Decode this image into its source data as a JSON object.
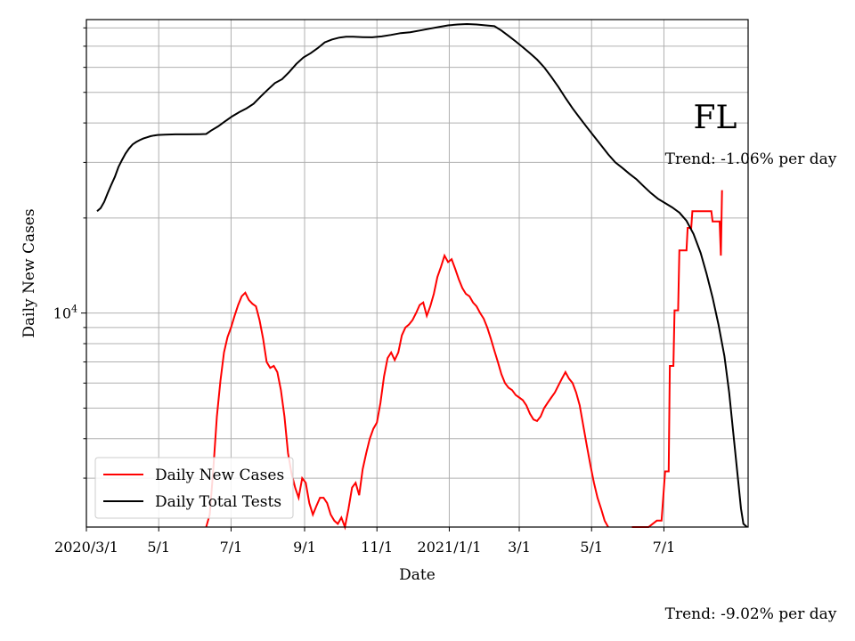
{
  "chart_data": {
    "type": "line",
    "state_label": "FL",
    "xlabel": "Date",
    "ylabel": "Daily New Cases",
    "y_scale": "log",
    "ylim": [
      2100,
      85000
    ],
    "grid": true,
    "legend_position": "lower-left",
    "x_ticks": [
      "2020/3/1",
      "5/1",
      "7/1",
      "9/1",
      "11/1",
      "2021/1/1",
      "3/1",
      "5/1",
      "7/1"
    ],
    "x_tick_dates": [
      "2020-03-01",
      "2020-05-01",
      "2020-07-01",
      "2020-09-01",
      "2020-11-01",
      "2021-01-01",
      "2021-03-01",
      "2021-05-01",
      "2021-07-01"
    ],
    "x_range": [
      "2020-03-01",
      "2021-09-10"
    ],
    "y_tick_label": "10^4",
    "trend_labels": {
      "tests": "Trend: -1.06% per day",
      "cases": "Trend: -9.02% per day"
    },
    "series": [
      {
        "name": "Daily New Cases",
        "color": "#ff0000",
        "points": [
          [
            "2020-06-10",
            1950
          ],
          [
            "2020-06-13",
            2300
          ],
          [
            "2020-06-16",
            3200
          ],
          [
            "2020-06-19",
            4700
          ],
          [
            "2020-06-22",
            6100
          ],
          [
            "2020-06-25",
            7500
          ],
          [
            "2020-06-28",
            8400
          ],
          [
            "2020-07-01",
            9000
          ],
          [
            "2020-07-04",
            9800
          ],
          [
            "2020-07-07",
            10600
          ],
          [
            "2020-07-10",
            11300
          ],
          [
            "2020-07-13",
            11600
          ],
          [
            "2020-07-16",
            11000
          ],
          [
            "2020-07-19",
            10700
          ],
          [
            "2020-07-22",
            10500
          ],
          [
            "2020-07-25",
            9500
          ],
          [
            "2020-07-28",
            8300
          ],
          [
            "2020-07-31",
            7000
          ],
          [
            "2020-08-03",
            6700
          ],
          [
            "2020-08-06",
            6800
          ],
          [
            "2020-08-09",
            6500
          ],
          [
            "2020-08-12",
            5700
          ],
          [
            "2020-08-15",
            4700
          ],
          [
            "2020-08-18",
            3600
          ],
          [
            "2020-08-21",
            3100
          ],
          [
            "2020-08-24",
            2800
          ],
          [
            "2020-08-27",
            2600
          ],
          [
            "2020-08-30",
            3000
          ],
          [
            "2020-09-02",
            2900
          ],
          [
            "2020-09-05",
            2500
          ],
          [
            "2020-09-08",
            2300
          ],
          [
            "2020-09-11",
            2450
          ],
          [
            "2020-09-14",
            2600
          ],
          [
            "2020-09-17",
            2600
          ],
          [
            "2020-09-20",
            2500
          ],
          [
            "2020-09-23",
            2300
          ],
          [
            "2020-09-26",
            2200
          ],
          [
            "2020-09-29",
            2150
          ],
          [
            "2020-10-02",
            2250
          ],
          [
            "2020-10-05",
            1900
          ],
          [
            "2020-10-08",
            2400
          ],
          [
            "2020-10-11",
            2800
          ],
          [
            "2020-10-14",
            2900
          ],
          [
            "2020-10-17",
            2650
          ],
          [
            "2020-10-20",
            3200
          ],
          [
            "2020-10-23",
            3600
          ],
          [
            "2020-10-26",
            4000
          ],
          [
            "2020-10-29",
            4300
          ],
          [
            "2020-11-01",
            4500
          ],
          [
            "2020-11-04",
            5200
          ],
          [
            "2020-11-07",
            6300
          ],
          [
            "2020-11-10",
            7200
          ],
          [
            "2020-11-13",
            7500
          ],
          [
            "2020-11-16",
            7100
          ],
          [
            "2020-11-19",
            7500
          ],
          [
            "2020-11-22",
            8500
          ],
          [
            "2020-11-25",
            9000
          ],
          [
            "2020-11-28",
            9200
          ],
          [
            "2020-12-01",
            9500
          ],
          [
            "2020-12-04",
            10000
          ],
          [
            "2020-12-07",
            10600
          ],
          [
            "2020-12-10",
            10800
          ],
          [
            "2020-12-13",
            9800
          ],
          [
            "2020-12-16",
            10500
          ],
          [
            "2020-12-19",
            11500
          ],
          [
            "2020-12-22",
            13000
          ],
          [
            "2020-12-25",
            14000
          ],
          [
            "2020-12-28",
            15200
          ],
          [
            "2020-12-31",
            14500
          ],
          [
            "2021-01-03",
            14800
          ],
          [
            "2021-01-06",
            13800
          ],
          [
            "2021-01-09",
            12800
          ],
          [
            "2021-01-12",
            12000
          ],
          [
            "2021-01-15",
            11500
          ],
          [
            "2021-01-18",
            11300
          ],
          [
            "2021-01-21",
            10800
          ],
          [
            "2021-01-24",
            10500
          ],
          [
            "2021-01-27",
            10000
          ],
          [
            "2021-01-30",
            9600
          ],
          [
            "2021-02-02",
            9000
          ],
          [
            "2021-02-05",
            8300
          ],
          [
            "2021-02-08",
            7600
          ],
          [
            "2021-02-11",
            7000
          ],
          [
            "2021-02-14",
            6400
          ],
          [
            "2021-02-17",
            6000
          ],
          [
            "2021-02-20",
            5800
          ],
          [
            "2021-02-23",
            5700
          ],
          [
            "2021-02-26",
            5500
          ],
          [
            "2021-03-01",
            5400
          ],
          [
            "2021-03-04",
            5300
          ],
          [
            "2021-03-07",
            5100
          ],
          [
            "2021-03-10",
            4800
          ],
          [
            "2021-03-13",
            4600
          ],
          [
            "2021-03-16",
            4550
          ],
          [
            "2021-03-19",
            4700
          ],
          [
            "2021-03-22",
            5000
          ],
          [
            "2021-03-25",
            5200
          ],
          [
            "2021-03-28",
            5400
          ],
          [
            "2021-03-31",
            5600
          ],
          [
            "2021-04-03",
            5900
          ],
          [
            "2021-04-06",
            6200
          ],
          [
            "2021-04-09",
            6500
          ],
          [
            "2021-04-12",
            6200
          ],
          [
            "2021-04-15",
            6000
          ],
          [
            "2021-04-18",
            5600
          ],
          [
            "2021-04-21",
            5100
          ],
          [
            "2021-04-24",
            4400
          ],
          [
            "2021-04-27",
            3800
          ],
          [
            "2021-04-30",
            3300
          ],
          [
            "2021-05-03",
            2900
          ],
          [
            "2021-05-06",
            2600
          ],
          [
            "2021-05-09",
            2400
          ],
          [
            "2021-05-12",
            2200
          ],
          [
            "2021-05-15",
            2000
          ]
        ],
        "steps": [
          [
            "2021-06-04",
            2000
          ],
          [
            "2021-06-18",
            2000
          ],
          [
            "2021-06-25",
            2200
          ],
          [
            "2021-06-29",
            2200
          ],
          [
            "2021-07-02",
            3150
          ],
          [
            "2021-07-05",
            3150
          ],
          [
            "2021-07-06",
            6800
          ],
          [
            "2021-07-09",
            6800
          ],
          [
            "2021-07-10",
            10200
          ],
          [
            "2021-07-13",
            10200
          ],
          [
            "2021-07-14",
            15800
          ],
          [
            "2021-07-20",
            15800
          ],
          [
            "2021-07-21",
            18600
          ],
          [
            "2021-07-24",
            18600
          ],
          [
            "2021-07-25",
            21000
          ],
          [
            "2021-08-10",
            21000
          ],
          [
            "2021-08-11",
            19500
          ],
          [
            "2021-08-17",
            19500
          ],
          [
            "2021-08-18",
            15200
          ],
          [
            "2021-08-19",
            24500
          ]
        ]
      },
      {
        "name": "Daily Total Tests",
        "color": "#000000",
        "points": [
          [
            "2020-03-10",
            21000
          ],
          [
            "2020-03-13",
            21500
          ],
          [
            "2020-03-16",
            22500
          ],
          [
            "2020-03-19",
            24000
          ],
          [
            "2020-03-22",
            25500
          ],
          [
            "2020-03-25",
            27000
          ],
          [
            "2020-03-28",
            29000
          ],
          [
            "2020-03-31",
            30500
          ],
          [
            "2020-04-03",
            32000
          ],
          [
            "2020-04-06",
            33200
          ],
          [
            "2020-04-09",
            34200
          ],
          [
            "2020-04-12",
            34800
          ],
          [
            "2020-04-15",
            35300
          ],
          [
            "2020-04-18",
            35700
          ],
          [
            "2020-04-21",
            36000
          ],
          [
            "2020-04-24",
            36300
          ],
          [
            "2020-04-27",
            36500
          ],
          [
            "2020-04-30",
            36650
          ],
          [
            "2020-05-06",
            36750
          ],
          [
            "2020-05-15",
            36800
          ],
          [
            "2020-05-25",
            36800
          ],
          [
            "2020-06-05",
            36850
          ],
          [
            "2020-06-10",
            36900
          ],
          [
            "2020-06-14",
            37800
          ],
          [
            "2020-06-20",
            39000
          ],
          [
            "2020-06-26",
            40500
          ],
          [
            "2020-07-02",
            42000
          ],
          [
            "2020-07-08",
            43300
          ],
          [
            "2020-07-14",
            44500
          ],
          [
            "2020-07-20",
            46000
          ],
          [
            "2020-07-26",
            48500
          ],
          [
            "2020-08-01",
            51000
          ],
          [
            "2020-08-07",
            53500
          ],
          [
            "2020-08-13",
            55000
          ],
          [
            "2020-08-19",
            58000
          ],
          [
            "2020-08-25",
            61500
          ],
          [
            "2020-08-31",
            64500
          ],
          [
            "2020-09-06",
            66500
          ],
          [
            "2020-09-12",
            69000
          ],
          [
            "2020-09-18",
            72000
          ],
          [
            "2020-09-24",
            73500
          ],
          [
            "2020-09-30",
            74500
          ],
          [
            "2020-10-06",
            75000
          ],
          [
            "2020-10-12",
            75000
          ],
          [
            "2020-10-20",
            74800
          ],
          [
            "2020-10-28",
            74700
          ],
          [
            "2020-11-05",
            75200
          ],
          [
            "2020-11-13",
            76000
          ],
          [
            "2020-11-21",
            77000
          ],
          [
            "2020-11-29",
            77500
          ],
          [
            "2020-12-07",
            78500
          ],
          [
            "2020-12-15",
            79500
          ],
          [
            "2020-12-23",
            80500
          ],
          [
            "2020-12-31",
            81500
          ],
          [
            "2021-01-08",
            82000
          ],
          [
            "2021-01-16",
            82300
          ],
          [
            "2021-01-24",
            82000
          ],
          [
            "2021-02-01",
            81500
          ],
          [
            "2021-02-08",
            81000
          ],
          [
            "2021-02-14",
            78500
          ],
          [
            "2021-02-20",
            75500
          ],
          [
            "2021-02-26",
            72500
          ],
          [
            "2021-03-04",
            69500
          ],
          [
            "2021-03-10",
            66500
          ],
          [
            "2021-03-16",
            63500
          ],
          [
            "2021-03-22",
            60000
          ],
          [
            "2021-03-28",
            56000
          ],
          [
            "2021-04-03",
            52000
          ],
          [
            "2021-04-09",
            48000
          ],
          [
            "2021-04-15",
            44500
          ],
          [
            "2021-04-21",
            41500
          ],
          [
            "2021-04-27",
            38800
          ],
          [
            "2021-05-03",
            36300
          ],
          [
            "2021-05-09",
            34000
          ],
          [
            "2021-05-15",
            31800
          ],
          [
            "2021-05-21",
            30000
          ],
          [
            "2021-05-27",
            28800
          ],
          [
            "2021-06-02",
            27600
          ],
          [
            "2021-06-08",
            26500
          ],
          [
            "2021-06-14",
            25200
          ],
          [
            "2021-06-20",
            24000
          ],
          [
            "2021-06-26",
            23000
          ],
          [
            "2021-07-02",
            22300
          ],
          [
            "2021-07-08",
            21600
          ],
          [
            "2021-07-14",
            20800
          ],
          [
            "2021-07-20",
            19600
          ],
          [
            "2021-07-26",
            17800
          ],
          [
            "2021-08-01",
            15500
          ],
          [
            "2021-08-06",
            13300
          ],
          [
            "2021-08-11",
            11200
          ],
          [
            "2021-08-16",
            9200
          ],
          [
            "2021-08-21",
            7300
          ],
          [
            "2021-08-25",
            5600
          ],
          [
            "2021-08-29",
            4000
          ],
          [
            "2021-09-01",
            3100
          ],
          [
            "2021-09-04",
            2400
          ],
          [
            "2021-09-06",
            2150
          ],
          [
            "2021-09-09",
            2100
          ]
        ]
      }
    ]
  }
}
